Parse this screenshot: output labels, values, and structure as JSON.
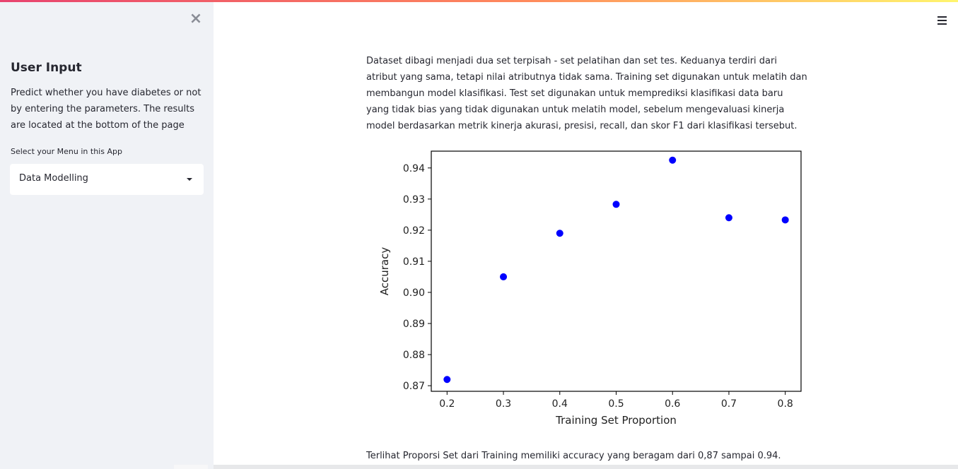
{
  "sidebar": {
    "close_icon": "×",
    "title": "User Input",
    "description": "Predict whether you have diabetes or not by entering the parameters. The results are located at the bottom of the page",
    "menu_label": "Select your Menu in this App",
    "menu_selected": "Data Modelling"
  },
  "main": {
    "menu_icon": "hamburger-icon",
    "paragraph1": "Dataset dibagi menjadi dua set terpisah - set pelatihan dan set tes. Keduanya terdiri dari atribut yang sama, tetapi nilai atributnya tidak sama. Training set digunakan untuk melatih dan membangun model klasifikasi. Test set digunakan untuk memprediksi klasifikasi data baru yang tidak bias yang tidak digunakan untuk melatih model, sebelum mengevaluasi kinerja model berdasarkan metrik kinerja akurasi, presisi, recall, dan skor F1 dari klasifikasi tersebut.",
    "paragraph2": "Terlihat Proporsi Set dari Training memiliki accuracy yang beragam dari 0,87 sampai 0.94."
  },
  "colors": {
    "accent_gradient": [
      "#e8436f",
      "#ff8a5c",
      "#fff56e"
    ],
    "point_color": "#0000ff",
    "sidebar_bg": "#f0f2f6"
  },
  "chart_data": {
    "type": "scatter",
    "title": "",
    "xlabel": "Training Set Proportion",
    "ylabel": "Accuracy",
    "x": [
      0.2,
      0.3,
      0.4,
      0.5,
      0.6,
      0.7,
      0.8
    ],
    "y": [
      0.872,
      0.905,
      0.919,
      0.9283,
      0.9425,
      0.924,
      0.9233
    ],
    "xticks": [
      "0.2",
      "0.3",
      "0.4",
      "0.5",
      "0.6",
      "0.7",
      "0.8"
    ],
    "yticks": [
      "0.87",
      "0.88",
      "0.89",
      "0.90",
      "0.91",
      "0.92",
      "0.93",
      "0.94"
    ],
    "xlim": [
      0.172,
      0.828
    ],
    "ylim": [
      0.8682,
      0.9454
    ],
    "grid": false,
    "legend": "none"
  }
}
